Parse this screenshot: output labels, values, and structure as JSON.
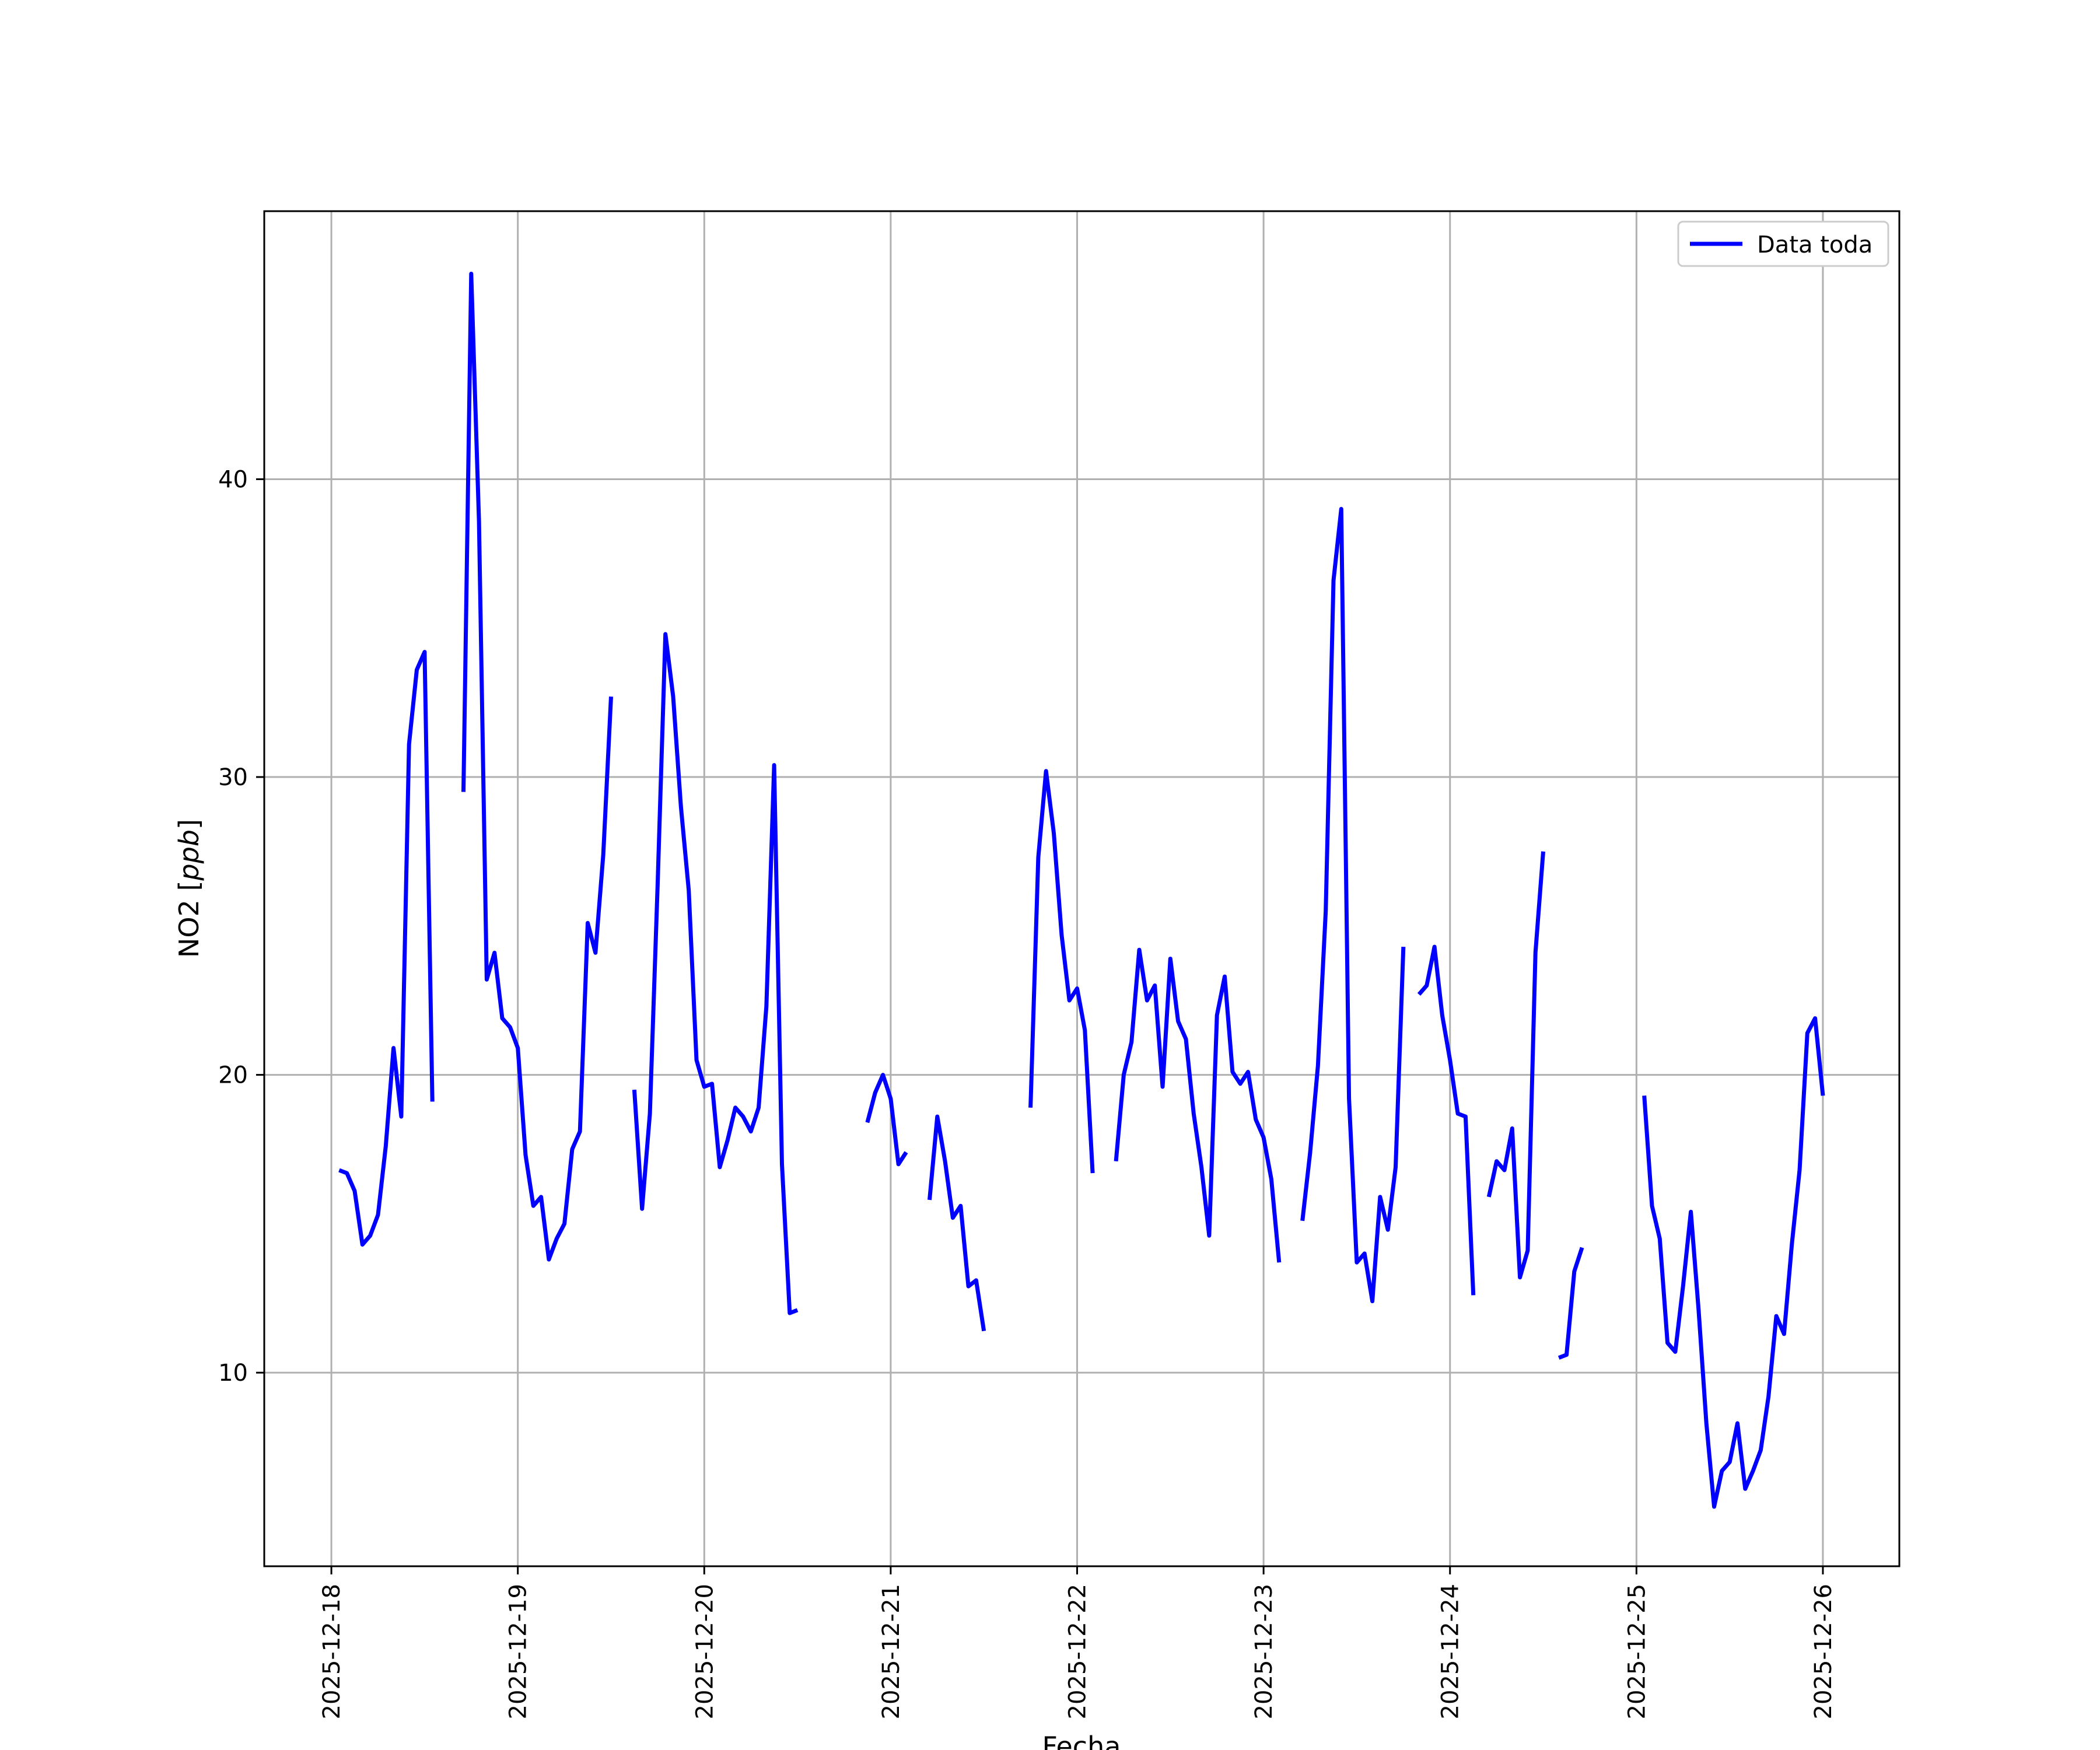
{
  "chart_data": {
    "type": "line",
    "title": "",
    "xlabel": "Fecha",
    "ylabel": "NO2 [ppb]",
    "ylim": [
      3.5,
      49.0
    ],
    "xlim_days": [
      -0.36,
      8.41
    ],
    "x_ticks": [
      "2025-12-18",
      "2025-12-19",
      "2025-12-20",
      "2025-12-21",
      "2025-12-22",
      "2025-12-23",
      "2025-12-24",
      "2025-12-25",
      "2025-12-26"
    ],
    "y_ticks": [
      10,
      20,
      30,
      40
    ],
    "grid": true,
    "legend_position": "upper right",
    "colors": {
      "line": "#0000ff",
      "grid": "#b0b0b0",
      "frame": "#000000"
    },
    "series": [
      {
        "name": "Data toda",
        "segments": [
          [
            [
              "2025-12-18 01:00",
              16.8
            ],
            [
              "2025-12-18 02:00",
              16.7
            ],
            [
              "2025-12-18 03:00",
              16.1
            ],
            [
              "2025-12-18 04:00",
              14.3
            ],
            [
              "2025-12-18 05:00",
              14.6
            ],
            [
              "2025-12-18 06:00",
              15.3
            ],
            [
              "2025-12-18 07:00",
              17.6
            ],
            [
              "2025-12-18 08:00",
              20.9
            ],
            [
              "2025-12-18 09:00",
              18.6
            ],
            [
              "2025-12-18 10:00",
              31.1
            ],
            [
              "2025-12-18 11:00",
              33.6
            ],
            [
              "2025-12-18 12:00",
              34.2
            ],
            [
              "2025-12-18 13:00",
              19.1
            ]
          ],
          [
            [
              "2025-12-18 17:00",
              29.5
            ],
            [
              "2025-12-18 18:00",
              46.9
            ],
            [
              "2025-12-18 19:00",
              38.6
            ],
            [
              "2025-12-18 20:00",
              23.2
            ],
            [
              "2025-12-18 21:00",
              24.1
            ],
            [
              "2025-12-18 22:00",
              21.9
            ],
            [
              "2025-12-18 23:00",
              21.6
            ],
            [
              "2025-12-19 00:00",
              20.9
            ],
            [
              "2025-12-19 01:00",
              17.3
            ],
            [
              "2025-12-19 02:00",
              15.6
            ],
            [
              "2025-12-19 03:00",
              15.9
            ],
            [
              "2025-12-19 04:00",
              13.8
            ],
            [
              "2025-12-19 05:00",
              14.5
            ],
            [
              "2025-12-19 06:00",
              15.0
            ],
            [
              "2025-12-19 07:00",
              17.5
            ],
            [
              "2025-12-19 08:00",
              18.1
            ],
            [
              "2025-12-19 09:00",
              25.1
            ],
            [
              "2025-12-19 10:00",
              24.1
            ],
            [
              "2025-12-19 11:00",
              27.4
            ],
            [
              "2025-12-19 12:00",
              32.7
            ]
          ],
          [
            [
              "2025-12-19 15:00",
              19.5
            ],
            [
              "2025-12-19 16:00",
              15.5
            ],
            [
              "2025-12-19 17:00",
              18.7
            ],
            [
              "2025-12-19 18:00",
              26.4
            ],
            [
              "2025-12-19 19:00",
              34.8
            ],
            [
              "2025-12-19 20:00",
              32.7
            ],
            [
              "2025-12-19 21:00",
              29.0
            ],
            [
              "2025-12-19 22:00",
              26.2
            ],
            [
              "2025-12-19 23:00",
              20.5
            ],
            [
              "2025-12-20 00:00",
              19.6
            ],
            [
              "2025-12-20 01:00",
              19.7
            ],
            [
              "2025-12-20 02:00",
              16.9
            ],
            [
              "2025-12-20 03:00",
              17.8
            ],
            [
              "2025-12-20 04:00",
              18.9
            ],
            [
              "2025-12-20 05:00",
              18.6
            ],
            [
              "2025-12-20 06:00",
              18.1
            ],
            [
              "2025-12-20 07:00",
              18.9
            ],
            [
              "2025-12-20 08:00",
              22.3
            ],
            [
              "2025-12-20 09:00",
              30.4
            ],
            [
              "2025-12-20 10:00",
              17.0
            ],
            [
              "2025-12-20 11:00",
              12.0
            ],
            [
              "2025-12-20 12:00",
              12.1
            ]
          ],
          [
            [
              "2025-12-20 21:00",
              18.4
            ],
            [
              "2025-12-20 22:00",
              19.4
            ],
            [
              "2025-12-20 23:00",
              20.0
            ],
            [
              "2025-12-21 00:00",
              19.2
            ],
            [
              "2025-12-21 01:00",
              17.0
            ],
            [
              "2025-12-21 02:00",
              17.4
            ]
          ],
          [
            [
              "2025-12-21 05:00",
              15.8
            ],
            [
              "2025-12-21 06:00",
              18.6
            ],
            [
              "2025-12-21 07:00",
              17.1
            ],
            [
              "2025-12-21 08:00",
              15.2
            ],
            [
              "2025-12-21 09:00",
              15.6
            ],
            [
              "2025-12-21 10:00",
              12.9
            ],
            [
              "2025-12-21 11:00",
              13.1
            ],
            [
              "2025-12-21 12:00",
              11.4
            ]
          ],
          [
            [
              "2025-12-21 18:00",
              18.9
            ],
            [
              "2025-12-21 19:00",
              27.3
            ],
            [
              "2025-12-21 20:00",
              30.2
            ],
            [
              "2025-12-21 21:00",
              28.1
            ],
            [
              "2025-12-21 22:00",
              24.7
            ],
            [
              "2025-12-21 23:00",
              22.5
            ],
            [
              "2025-12-22 00:00",
              22.9
            ],
            [
              "2025-12-22 01:00",
              21.5
            ],
            [
              "2025-12-22 02:00",
              16.7
            ]
          ],
          [
            [
              "2025-12-22 05:00",
              17.1
            ],
            [
              "2025-12-22 06:00",
              20.0
            ],
            [
              "2025-12-22 07:00",
              21.1
            ],
            [
              "2025-12-22 08:00",
              24.2
            ],
            [
              "2025-12-22 09:00",
              22.5
            ],
            [
              "2025-12-22 10:00",
              23.0
            ],
            [
              "2025-12-22 11:00",
              19.6
            ],
            [
              "2025-12-22 12:00",
              23.9
            ],
            [
              "2025-12-22 13:00",
              21.8
            ],
            [
              "2025-12-22 14:00",
              21.2
            ],
            [
              "2025-12-22 15:00",
              18.7
            ],
            [
              "2025-12-22 16:00",
              16.9
            ],
            [
              "2025-12-22 17:00",
              14.6
            ],
            [
              "2025-12-22 18:00",
              22.0
            ],
            [
              "2025-12-22 19:00",
              23.3
            ],
            [
              "2025-12-22 20:00",
              20.1
            ],
            [
              "2025-12-22 21:00",
              19.7
            ],
            [
              "2025-12-22 22:00",
              20.1
            ],
            [
              "2025-12-22 23:00",
              18.5
            ],
            [
              "2025-12-23 00:00",
              17.9
            ],
            [
              "2025-12-23 01:00",
              16.5
            ],
            [
              "2025-12-23 02:00",
              13.7
            ]
          ],
          [
            [
              "2025-12-23 05:00",
              15.1
            ],
            [
              "2025-12-23 06:00",
              17.4
            ],
            [
              "2025-12-23 07:00",
              20.3
            ],
            [
              "2025-12-23 08:00",
              25.5
            ],
            [
              "2025-12-23 09:00",
              36.6
            ],
            [
              "2025-12-23 10:00",
              39.0
            ],
            [
              "2025-12-23 11:00",
              19.2
            ],
            [
              "2025-12-23 12:00",
              13.7
            ],
            [
              "2025-12-23 13:00",
              14.0
            ],
            [
              "2025-12-23 14:00",
              12.4
            ],
            [
              "2025-12-23 15:00",
              15.9
            ],
            [
              "2025-12-23 16:00",
              14.8
            ],
            [
              "2025-12-23 17:00",
              16.9
            ],
            [
              "2025-12-23 18:00",
              24.3
            ]
          ],
          [
            [
              "2025-12-23 20:00",
              22.7
            ],
            [
              "2025-12-23 21:00",
              23.0
            ],
            [
              "2025-12-23 22:00",
              24.3
            ],
            [
              "2025-12-23 23:00",
              22.0
            ],
            [
              "2025-12-24 00:00",
              20.5
            ],
            [
              "2025-12-24 01:00",
              18.7
            ],
            [
              "2025-12-24 02:00",
              18.6
            ],
            [
              "2025-12-24 03:00",
              12.6
            ]
          ],
          [
            [
              "2025-12-24 05:00",
              15.9
            ],
            [
              "2025-12-24 06:00",
              17.1
            ],
            [
              "2025-12-24 07:00",
              16.8
            ],
            [
              "2025-12-24 08:00",
              18.2
            ],
            [
              "2025-12-24 09:00",
              13.2
            ],
            [
              "2025-12-24 10:00",
              14.1
            ],
            [
              "2025-12-24 11:00",
              24.1
            ],
            [
              "2025-12-24 12:00",
              27.5
            ]
          ],
          [
            [
              "2025-12-24 14:00",
              10.5
            ],
            [
              "2025-12-24 15:00",
              10.6
            ],
            [
              "2025-12-24 16:00",
              13.4
            ],
            [
              "2025-12-24 17:00",
              14.2
            ]
          ],
          [
            [
              "2025-12-25 01:00",
              19.3
            ],
            [
              "2025-12-25 02:00",
              15.6
            ],
            [
              "2025-12-25 03:00",
              14.5
            ],
            [
              "2025-12-25 04:00",
              11.0
            ],
            [
              "2025-12-25 05:00",
              10.7
            ],
            [
              "2025-12-25 06:00",
              12.9
            ],
            [
              "2025-12-25 07:00",
              15.4
            ],
            [
              "2025-12-25 08:00",
              12.1
            ],
            [
              "2025-12-25 09:00",
              8.3
            ],
            [
              "2025-12-25 10:00",
              5.5
            ],
            [
              "2025-12-25 11:00",
              6.7
            ],
            [
              "2025-12-25 12:00",
              7.0
            ],
            [
              "2025-12-25 13:00",
              8.3
            ],
            [
              "2025-12-25 14:00",
              6.1
            ],
            [
              "2025-12-25 15:00",
              6.7
            ],
            [
              "2025-12-25 16:00",
              7.4
            ],
            [
              "2025-12-25 17:00",
              9.2
            ],
            [
              "2025-12-25 18:00",
              11.9
            ],
            [
              "2025-12-25 19:00",
              11.3
            ],
            [
              "2025-12-25 20:00",
              14.3
            ],
            [
              "2025-12-25 21:00",
              16.8
            ],
            [
              "2025-12-25 22:00",
              21.4
            ],
            [
              "2025-12-25 23:00",
              21.9
            ],
            [
              "2025-12-26 00:00",
              19.3
            ]
          ]
        ]
      }
    ]
  }
}
